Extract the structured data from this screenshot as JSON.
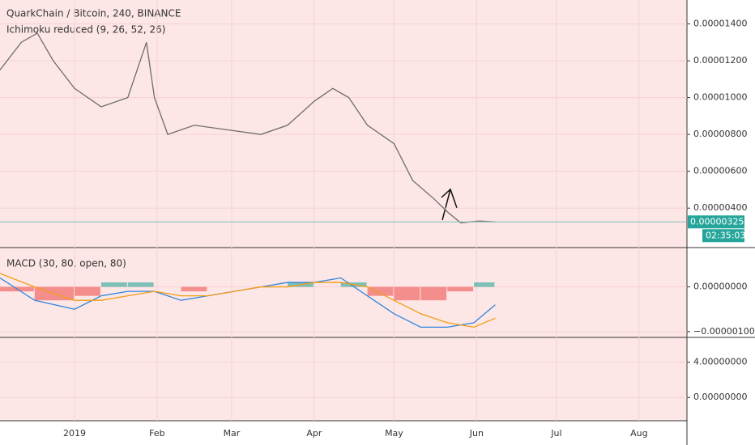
{
  "chart_data": [
    {
      "type": "line",
      "title": "QuarkChain / Bitcoin, 240, BINANCE",
      "subtitle": "Ichimoku reduced (9, 26, 52, 26)",
      "x": [
        -28,
        -20,
        -14,
        -8,
        0,
        10,
        20,
        27,
        30,
        35,
        45,
        60,
        70,
        80,
        90,
        97,
        103,
        110,
        120,
        127,
        135,
        140,
        145,
        152,
        158
      ],
      "values": [
        1.15e-05,
        1.3e-05,
        1.35e-05,
        1.2e-05,
        1.05e-05,
        9.5e-06,
        1e-05,
        1.3e-05,
        1e-05,
        8e-06,
        8.5e-06,
        8.2e-06,
        8e-06,
        8.5e-06,
        9.8e-06,
        1.05e-05,
        1e-05,
        8.5e-06,
        7.5e-06,
        5.5e-06,
        4.5e-06,
        3.8e-06,
        3.2e-06,
        3.3e-06,
        3.25e-06
      ],
      "color": "#6d6d6d",
      "xlim": [
        -28,
        230
      ],
      "xticks": [
        {
          "value": 0,
          "label": "2019"
        },
        {
          "value": 31,
          "label": "Feb"
        },
        {
          "value": 59,
          "label": "Mar"
        },
        {
          "value": 90,
          "label": "Apr"
        },
        {
          "value": 120,
          "label": "May"
        },
        {
          "value": 151,
          "label": "Jun"
        },
        {
          "value": 181,
          "label": "Jul"
        },
        {
          "value": 212,
          "label": "Aug"
        }
      ],
      "ylim": [
        1.9e-06,
        1.53e-05
      ],
      "yticks": [
        {
          "value": 4e-06,
          "label": "0.00000400"
        },
        {
          "value": 6e-06,
          "label": "0.00000600"
        },
        {
          "value": 8e-06,
          "label": "0.00000800"
        },
        {
          "value": 1e-05,
          "label": "0.00001000"
        },
        {
          "value": 1.2e-05,
          "label": "0.00001200"
        },
        {
          "value": 1.4e-05,
          "label": "0.00001400"
        }
      ],
      "last_price": {
        "value": 3.25e-06,
        "label": "0.00000325"
      },
      "countdown": "02:35:03"
    },
    {
      "type": "macd",
      "title": "MACD (30, 80, open, 80)",
      "x": [
        -28,
        -15,
        0,
        10,
        20,
        30,
        40,
        50,
        60,
        70,
        80,
        90,
        100,
        110,
        120,
        130,
        140,
        150,
        158
      ],
      "series": [
        {
          "color": "#2e86de",
          "values": [
            2e-07,
            -3e-07,
            -5e-07,
            -2e-07,
            -1e-07,
            -1e-07,
            -3e-07,
            -2e-07,
            -1e-07,
            0,
            1e-07,
            1e-07,
            2e-07,
            -2e-07,
            -6e-07,
            -9e-07,
            -9e-07,
            -8e-07,
            -4e-07
          ]
        },
        {
          "color": "#f39c12",
          "values": [
            3e-07,
            0,
            -3e-07,
            -3e-07,
            -2e-07,
            -1e-07,
            -2e-07,
            -2e-07,
            -1e-07,
            0,
            0,
            1e-07,
            1e-07,
            0,
            -3e-07,
            -6e-07,
            -8e-07,
            -9e-07,
            -7e-07
          ]
        }
      ],
      "ylim": [
        -1.11e-06,
        8.6e-07
      ],
      "yticks": [
        {
          "value": 0,
          "label": "0.00000000"
        },
        {
          "value": -1e-06,
          "label": "−0.00000100"
        }
      ]
    },
    {
      "type": "empty",
      "ylim": [
        -2.55,
        6.73
      ],
      "yticks": [
        {
          "value": 4,
          "label": "4.00000000"
        },
        {
          "value": 0,
          "label": "0.00000000"
        }
      ]
    }
  ]
}
